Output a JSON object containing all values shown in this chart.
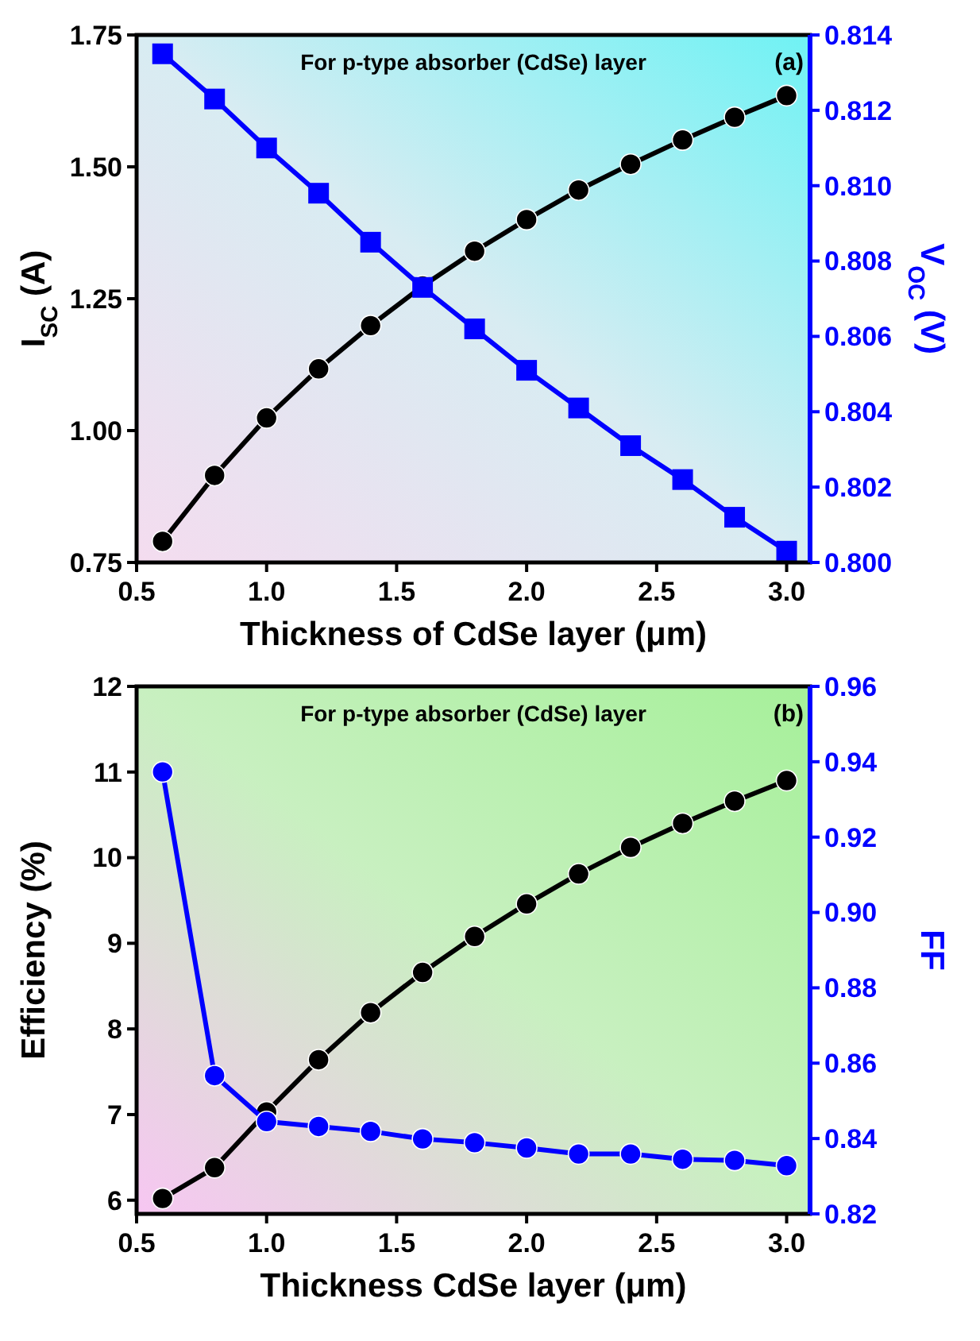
{
  "chart_data": [
    {
      "type": "line",
      "xlabel": "Thickness of CdSe layer (μm)",
      "ylabel": "I$_{SC}$ (A)",
      "y2label": "V$_{OC}$ (V)",
      "annotations": [
        "For p-type absorber (CdSe) layer",
        "(a)"
      ],
      "x": [
        0.6,
        0.8,
        1.0,
        1.2,
        1.4,
        1.6,
        1.8,
        2.0,
        2.2,
        2.4,
        2.6,
        2.8,
        3.0
      ],
      "xlim": [
        0.5,
        3.09
      ],
      "xticks": [
        {
          "value": 0.5,
          "label": "0.5"
        },
        {
          "value": 1,
          "label": "1.0"
        },
        {
          "value": 1.5,
          "label": "1.5"
        },
        {
          "value": 2,
          "label": "2.0"
        },
        {
          "value": 2.5,
          "label": "2.5"
        },
        {
          "value": 3,
          "label": "3.0"
        }
      ],
      "ylim": [
        0.75,
        1.75
      ],
      "yticks": [
        {
          "value": 0.75,
          "label": "0.75"
        },
        {
          "value": 1,
          "label": "1.00"
        },
        {
          "value": 1.25,
          "label": "1.25"
        },
        {
          "value": 1.5,
          "label": "1.50"
        },
        {
          "value": 1.75,
          "label": "1.75"
        }
      ],
      "y2lim": [
        0.8,
        0.814
      ],
      "y2ticks": [
        {
          "value": 0.8,
          "label": "0.800"
        },
        {
          "value": 0.802,
          "label": "0.802"
        },
        {
          "value": 0.804,
          "label": "0.804"
        },
        {
          "value": 0.806,
          "label": "0.806"
        },
        {
          "value": 0.808,
          "label": "0.808"
        },
        {
          "value": 0.81,
          "label": "0.810"
        },
        {
          "value": 0.812,
          "label": "0.812"
        },
        {
          "value": 0.814,
          "label": "0.814"
        }
      ],
      "grid": false,
      "line_style": "solid",
      "series": [
        {
          "color": "#000000",
          "marker": "circle",
          "values": [
            0.79,
            0.915,
            1.024,
            1.117,
            1.199,
            1.274,
            1.34,
            1.4,
            1.456,
            1.505,
            1.551,
            1.594,
            1.635
          ]
        },
        {
          "color": "#0000ff",
          "marker": "square",
          "axis": "y2",
          "values": [
            0.8135,
            0.8123,
            0.811,
            0.8098,
            0.8085,
            0.8073,
            0.8062,
            0.8051,
            0.8041,
            0.8031,
            0.8022,
            0.8012,
            0.8003
          ]
        }
      ]
    },
    {
      "type": "line",
      "xlabel": "Thickness CdSe layer (μm)",
      "ylabel": "Efficiency (%)",
      "y2label": "FF",
      "annotations": [
        "For p-type absorber (CdSe) layer",
        "(b)"
      ],
      "x": [
        0.6,
        0.8,
        1.0,
        1.2,
        1.4,
        1.6,
        1.8,
        2.0,
        2.2,
        2.4,
        2.6,
        2.8,
        3.0
      ],
      "xlim": [
        0.5,
        3.09
      ],
      "xticks": [
        {
          "value": 0.5,
          "label": "0.5"
        },
        {
          "value": 1,
          "label": "1.0"
        },
        {
          "value": 1.5,
          "label": "1.5"
        },
        {
          "value": 2,
          "label": "2.0"
        },
        {
          "value": 2.5,
          "label": "2.5"
        },
        {
          "value": 3,
          "label": "3.0"
        }
      ],
      "ylim": [
        5.84,
        12
      ],
      "yticks": [
        6,
        7,
        8,
        9,
        10,
        11,
        12
      ],
      "y2lim": [
        0.82,
        0.96
      ],
      "y2ticks": [
        0.82,
        0.84,
        0.86,
        0.88,
        {
          "value": 0.9,
          "label": "0.90"
        },
        0.92,
        0.94,
        0.96
      ],
      "grid": false,
      "line_style": "solid",
      "series": [
        {
          "color": "#000000",
          "marker": "circle",
          "values": [
            6.02,
            6.38,
            7.03,
            7.64,
            8.19,
            8.66,
            9.08,
            9.46,
            9.81,
            10.12,
            10.4,
            10.66,
            10.9
          ]
        },
        {
          "color": "#0000ff",
          "marker": "circle",
          "axis": "y2",
          "values": [
            0.9373,
            0.8567,
            0.8445,
            0.8432,
            0.8419,
            0.8399,
            0.8389,
            0.8375,
            0.8359,
            0.8359,
            0.8345,
            0.8342,
            0.8328
          ]
        }
      ]
    }
  ]
}
